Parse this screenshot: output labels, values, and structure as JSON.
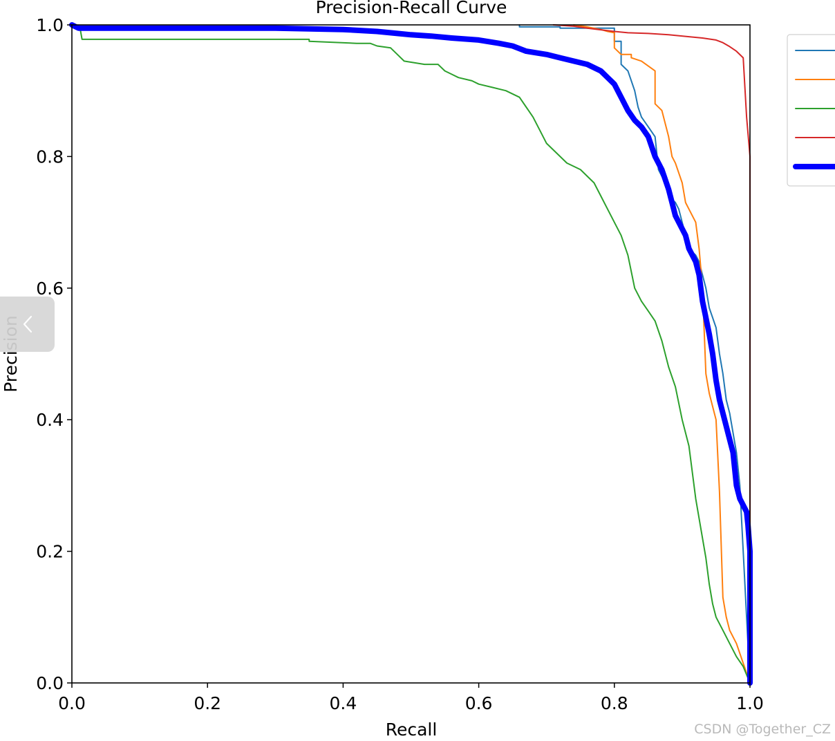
{
  "chart_data": {
    "type": "line",
    "title": "Precision-Recall Curve",
    "xlabel": "Recall",
    "ylabel": "Precision",
    "xlim": [
      0,
      1
    ],
    "ylim": [
      0,
      1
    ],
    "x_ticks": [
      "0.0",
      "0.2",
      "0.4",
      "0.6",
      "0.8",
      "1.0"
    ],
    "y_ticks": [
      "0.0",
      "0.2",
      "0.4",
      "0.6",
      "0.8",
      "1.0"
    ],
    "grid": false,
    "legend_placement": "outside-right-top",
    "series": [
      {
        "color": "#1f77b4",
        "width": 2,
        "points": [
          [
            0.66,
            1.0
          ],
          [
            0.66,
            0.997
          ],
          [
            0.72,
            0.997
          ],
          [
            0.72,
            0.995
          ],
          [
            0.8,
            0.995
          ],
          [
            0.8,
            0.975
          ],
          [
            0.81,
            0.975
          ],
          [
            0.81,
            0.94
          ],
          [
            0.82,
            0.93
          ],
          [
            0.83,
            0.9
          ],
          [
            0.835,
            0.875
          ],
          [
            0.84,
            0.86
          ],
          [
            0.85,
            0.845
          ],
          [
            0.86,
            0.83
          ],
          [
            0.865,
            0.78
          ],
          [
            0.87,
            0.77
          ],
          [
            0.875,
            0.765
          ],
          [
            0.88,
            0.74
          ],
          [
            0.89,
            0.73
          ],
          [
            0.895,
            0.72
          ],
          [
            0.9,
            0.7
          ],
          [
            0.905,
            0.68
          ],
          [
            0.91,
            0.66
          ],
          [
            0.92,
            0.65
          ],
          [
            0.925,
            0.64
          ],
          [
            0.935,
            0.6
          ],
          [
            0.94,
            0.57
          ],
          [
            0.95,
            0.54
          ],
          [
            0.955,
            0.5
          ],
          [
            0.96,
            0.47
          ],
          [
            0.965,
            0.43
          ],
          [
            0.97,
            0.41
          ],
          [
            0.975,
            0.38
          ],
          [
            0.98,
            0.35
          ],
          [
            0.985,
            0.3
          ],
          [
            0.99,
            0.2
          ],
          [
            0.995,
            0.1
          ],
          [
            1.0,
            0.0
          ]
        ]
      },
      {
        "color": "#ff7f0e",
        "width": 2,
        "points": [
          [
            0.74,
            1.0
          ],
          [
            0.76,
            0.997
          ],
          [
            0.77,
            0.995
          ],
          [
            0.78,
            0.993
          ],
          [
            0.79,
            0.99
          ],
          [
            0.8,
            0.988
          ],
          [
            0.8,
            0.965
          ],
          [
            0.81,
            0.955
          ],
          [
            0.825,
            0.955
          ],
          [
            0.825,
            0.95
          ],
          [
            0.84,
            0.945
          ],
          [
            0.86,
            0.93
          ],
          [
            0.86,
            0.88
          ],
          [
            0.87,
            0.87
          ],
          [
            0.88,
            0.83
          ],
          [
            0.885,
            0.8
          ],
          [
            0.89,
            0.79
          ],
          [
            0.9,
            0.76
          ],
          [
            0.905,
            0.73
          ],
          [
            0.91,
            0.72
          ],
          [
            0.92,
            0.7
          ],
          [
            0.925,
            0.66
          ],
          [
            0.93,
            0.6
          ],
          [
            0.935,
            0.47
          ],
          [
            0.94,
            0.44
          ],
          [
            0.945,
            0.42
          ],
          [
            0.95,
            0.4
          ],
          [
            0.955,
            0.29
          ],
          [
            0.96,
            0.13
          ],
          [
            0.965,
            0.1
          ],
          [
            0.97,
            0.08
          ],
          [
            0.98,
            0.06
          ],
          [
            0.99,
            0.03
          ],
          [
            1.0,
            0.0
          ]
        ]
      },
      {
        "color": "#2ca02c",
        "width": 2,
        "points": [
          [
            0.0,
            1.0
          ],
          [
            0.012,
            0.995
          ],
          [
            0.015,
            0.978
          ],
          [
            0.35,
            0.978
          ],
          [
            0.35,
            0.975
          ],
          [
            0.42,
            0.972
          ],
          [
            0.44,
            0.972
          ],
          [
            0.45,
            0.968
          ],
          [
            0.47,
            0.965
          ],
          [
            0.48,
            0.955
          ],
          [
            0.49,
            0.945
          ],
          [
            0.52,
            0.94
          ],
          [
            0.54,
            0.94
          ],
          [
            0.55,
            0.93
          ],
          [
            0.56,
            0.925
          ],
          [
            0.57,
            0.92
          ],
          [
            0.59,
            0.915
          ],
          [
            0.6,
            0.91
          ],
          [
            0.62,
            0.905
          ],
          [
            0.64,
            0.9
          ],
          [
            0.66,
            0.89
          ],
          [
            0.67,
            0.875
          ],
          [
            0.68,
            0.86
          ],
          [
            0.69,
            0.84
          ],
          [
            0.7,
            0.82
          ],
          [
            0.71,
            0.81
          ],
          [
            0.72,
            0.8
          ],
          [
            0.73,
            0.79
          ],
          [
            0.75,
            0.78
          ],
          [
            0.76,
            0.77
          ],
          [
            0.77,
            0.76
          ],
          [
            0.78,
            0.74
          ],
          [
            0.79,
            0.72
          ],
          [
            0.8,
            0.7
          ],
          [
            0.81,
            0.68
          ],
          [
            0.82,
            0.65
          ],
          [
            0.83,
            0.6
          ],
          [
            0.84,
            0.58
          ],
          [
            0.85,
            0.565
          ],
          [
            0.86,
            0.55
          ],
          [
            0.87,
            0.52
          ],
          [
            0.88,
            0.48
          ],
          [
            0.89,
            0.45
          ],
          [
            0.9,
            0.4
          ],
          [
            0.91,
            0.36
          ],
          [
            0.915,
            0.32
          ],
          [
            0.92,
            0.28
          ],
          [
            0.925,
            0.25
          ],
          [
            0.93,
            0.22
          ],
          [
            0.935,
            0.19
          ],
          [
            0.94,
            0.15
          ],
          [
            0.945,
            0.12
          ],
          [
            0.95,
            0.1
          ],
          [
            0.96,
            0.08
          ],
          [
            0.97,
            0.06
          ],
          [
            0.98,
            0.04
          ],
          [
            0.99,
            0.025
          ],
          [
            1.0,
            0.0
          ]
        ]
      },
      {
        "color": "#d62728",
        "width": 2,
        "points": [
          [
            0.71,
            1.0
          ],
          [
            0.74,
            0.998
          ],
          [
            0.76,
            0.995
          ],
          [
            0.8,
            0.99
          ],
          [
            0.82,
            0.988
          ],
          [
            0.85,
            0.987
          ],
          [
            0.88,
            0.985
          ],
          [
            0.91,
            0.982
          ],
          [
            0.93,
            0.98
          ],
          [
            0.95,
            0.977
          ],
          [
            0.96,
            0.973
          ],
          [
            0.97,
            0.967
          ],
          [
            0.98,
            0.96
          ],
          [
            0.99,
            0.95
          ],
          [
            0.995,
            0.86
          ],
          [
            1.0,
            0.8
          ],
          [
            1.0,
            0.0
          ]
        ]
      },
      {
        "color": "#0000ff",
        "width": 8,
        "points": [
          [
            0.0,
            1.0
          ],
          [
            0.01,
            0.995
          ],
          [
            0.1,
            0.995
          ],
          [
            0.2,
            0.995
          ],
          [
            0.3,
            0.995
          ],
          [
            0.4,
            0.993
          ],
          [
            0.45,
            0.99
          ],
          [
            0.48,
            0.987
          ],
          [
            0.5,
            0.985
          ],
          [
            0.53,
            0.983
          ],
          [
            0.56,
            0.98
          ],
          [
            0.6,
            0.977
          ],
          [
            0.63,
            0.972
          ],
          [
            0.65,
            0.968
          ],
          [
            0.67,
            0.96
          ],
          [
            0.7,
            0.955
          ],
          [
            0.72,
            0.95
          ],
          [
            0.74,
            0.945
          ],
          [
            0.76,
            0.94
          ],
          [
            0.78,
            0.93
          ],
          [
            0.79,
            0.92
          ],
          [
            0.8,
            0.91
          ],
          [
            0.81,
            0.89
          ],
          [
            0.82,
            0.87
          ],
          [
            0.83,
            0.855
          ],
          [
            0.84,
            0.845
          ],
          [
            0.85,
            0.83
          ],
          [
            0.86,
            0.8
          ],
          [
            0.87,
            0.78
          ],
          [
            0.88,
            0.75
          ],
          [
            0.885,
            0.73
          ],
          [
            0.89,
            0.71
          ],
          [
            0.9,
            0.69
          ],
          [
            0.905,
            0.68
          ],
          [
            0.91,
            0.66
          ],
          [
            0.92,
            0.64
          ],
          [
            0.925,
            0.62
          ],
          [
            0.93,
            0.58
          ],
          [
            0.935,
            0.555
          ],
          [
            0.94,
            0.53
          ],
          [
            0.945,
            0.5
          ],
          [
            0.95,
            0.46
          ],
          [
            0.955,
            0.43
          ],
          [
            0.96,
            0.41
          ],
          [
            0.965,
            0.39
          ],
          [
            0.97,
            0.37
          ],
          [
            0.975,
            0.35
          ],
          [
            0.98,
            0.3
          ],
          [
            0.985,
            0.28
          ],
          [
            0.99,
            0.27
          ],
          [
            0.995,
            0.26
          ],
          [
            0.997,
            0.24
          ],
          [
            1.0,
            0.2
          ],
          [
            1.0,
            0.0
          ]
        ]
      }
    ],
    "legend": [
      {
        "color": "#1f77b4",
        "width": 2
      },
      {
        "color": "#ff7f0e",
        "width": 2
      },
      {
        "color": "#2ca02c",
        "width": 2
      },
      {
        "color": "#d62728",
        "width": 2
      },
      {
        "color": "#0000ff",
        "width": 8
      }
    ]
  },
  "overlay": {
    "back_icon": "chevron-left-icon",
    "watermark": "CSDN @Together_CZ"
  }
}
